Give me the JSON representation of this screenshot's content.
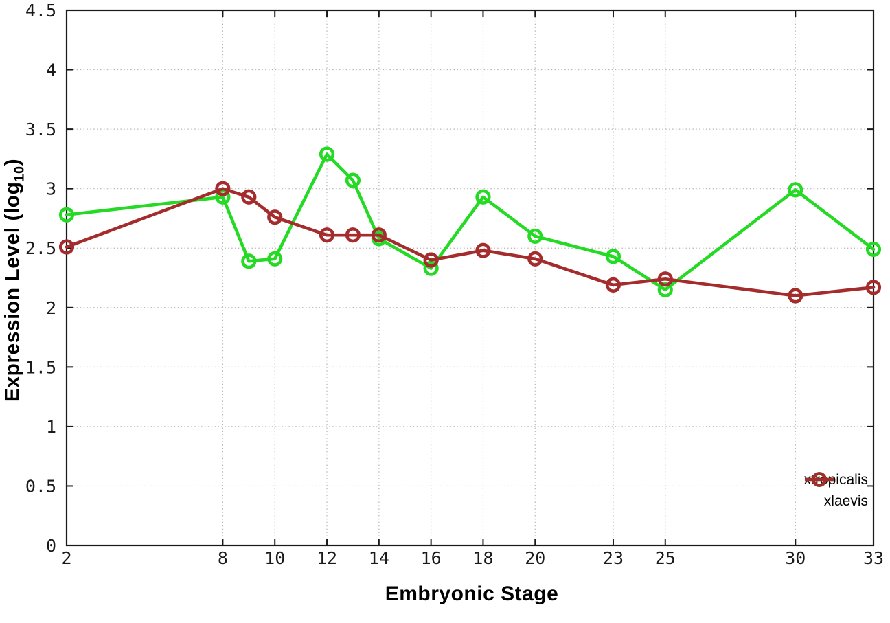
{
  "figure": {
    "background": "#ffffff",
    "xlabel": "Embryonic Stage",
    "ylabel_pre": "Expression Level (log",
    "ylabel_sub": "10",
    "ylabel_post": ")",
    "legend": [
      {
        "label": "xtropicalis",
        "color": "#24da24"
      },
      {
        "label": "xlaevis",
        "color": "#a52c2c"
      }
    ]
  },
  "chart_data": {
    "type": "line",
    "title": "",
    "xlabel": "Embryonic Stage",
    "ylabel": "Expression Level (log10)",
    "x": [
      2,
      8,
      9,
      10,
      12,
      13,
      14,
      16,
      18,
      20,
      23,
      25,
      30,
      33
    ],
    "series": [
      {
        "name": "xtropicalis",
        "color": "#24da24",
        "marker": "open-circle",
        "values": [
          2.78,
          2.93,
          2.39,
          2.41,
          3.29,
          3.07,
          2.58,
          2.33,
          2.93,
          2.6,
          2.43,
          2.15,
          2.99,
          2.49
        ]
      },
      {
        "name": "xlaevis",
        "color": "#a52c2c",
        "marker": "open-circle",
        "values": [
          2.51,
          3.0,
          2.93,
          2.76,
          2.61,
          2.61,
          2.61,
          2.4,
          2.48,
          2.41,
          2.19,
          2.24,
          2.1,
          2.17
        ]
      }
    ],
    "x_ticks": [
      "2",
      "8",
      "10",
      "12",
      "14",
      "16",
      "18",
      "20",
      "23",
      "25",
      "30",
      "33"
    ],
    "y_ticks": [
      "0",
      "0.5",
      "1",
      "1.5",
      "2",
      "2.5",
      "3",
      "3.5",
      "4",
      "4.5"
    ],
    "xlim": [
      2,
      33
    ],
    "ylim": [
      0,
      4.5
    ],
    "grid": true,
    "grid_style": "dotted",
    "legend_position": "bottom-right",
    "colors": {
      "grid": "#b5b5b5",
      "axis": "#1a1a1a",
      "tick_text": "#1a1a1a"
    }
  }
}
